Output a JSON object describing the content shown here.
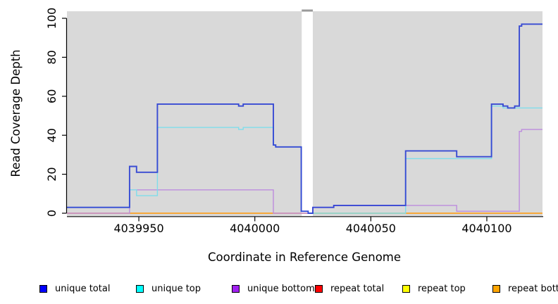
{
  "chart_data": {
    "type": "line",
    "subtype": "step-after-coverage-plot",
    "title": "",
    "xlabel": "Coordinate in Reference Genome",
    "ylabel": "Read Coverage Depth",
    "xlim": [
      4039919,
      4040124
    ],
    "ylim": [
      0,
      100
    ],
    "xticks": [
      "4039950",
      "4040000",
      "4040050",
      "4040100"
    ],
    "yticks": [
      "0",
      "20",
      "40",
      "60",
      "80",
      "100"
    ],
    "grid": "off",
    "legend_position": "bottom",
    "panel_background": "#D9D9D9",
    "gap_region": {
      "x_start": 4040020.2,
      "x_end": 4040025,
      "fill": "#FFFFFF"
    },
    "series": [
      {
        "name": "unique total",
        "legend_color": "#0000FF",
        "line_color": "#2B3FD2",
        "line_width": 1.9,
        "opacity": 0.92,
        "points": [
          [
            4039919,
            3
          ],
          [
            4039946,
            24
          ],
          [
            4039949,
            21
          ],
          [
            4039958,
            56
          ],
          [
            4039993,
            55
          ],
          [
            4039995,
            56
          ],
          [
            4040008,
            35
          ],
          [
            4040009,
            34
          ],
          [
            4040020,
            1
          ],
          [
            4040023,
            0
          ],
          [
            4040025,
            3
          ],
          [
            4040034,
            4
          ],
          [
            4040065,
            32
          ],
          [
            4040087,
            29
          ],
          [
            4040102,
            56
          ],
          [
            4040107,
            55
          ],
          [
            4040109,
            54
          ],
          [
            4040112,
            55
          ],
          [
            4040114,
            96
          ],
          [
            4040115,
            97
          ],
          [
            4040124,
            97
          ]
        ]
      },
      {
        "name": "unique top",
        "legend_color": "#00FFFF",
        "line_color": "#7FDDEB",
        "line_width": 1.4,
        "opacity": 1,
        "points": [
          [
            4039919,
            3
          ],
          [
            4039946,
            12
          ],
          [
            4039949,
            9
          ],
          [
            4039958,
            44
          ],
          [
            4039993,
            43
          ],
          [
            4039995,
            44
          ],
          [
            4040008,
            35
          ],
          [
            4040009,
            34
          ],
          [
            4040020,
            1
          ],
          [
            4040023,
            0
          ],
          [
            4040065,
            28
          ],
          [
            4040102,
            55
          ],
          [
            4040107,
            54
          ],
          [
            4040124,
            54
          ]
        ]
      },
      {
        "name": "unique bottom",
        "legend_color": "#A020F0",
        "line_color": "#BD8CDE",
        "line_width": 1.4,
        "opacity": 1,
        "points": [
          [
            4039919,
            0
          ],
          [
            4039946,
            12
          ],
          [
            4040008,
            0
          ],
          [
            4040025,
            3
          ],
          [
            4040034,
            4
          ],
          [
            4040087,
            1
          ],
          [
            4040114,
            42
          ],
          [
            4040115,
            43
          ],
          [
            4040124,
            43
          ]
        ]
      },
      {
        "name": "repeat total",
        "legend_color": "#FF0000",
        "line_color": "#C7506E",
        "line_width": 1.2,
        "opacity": 1,
        "points": [
          [
            4039919,
            0
          ],
          [
            4040124,
            0
          ]
        ]
      },
      {
        "name": "repeat top",
        "legend_color": "#FFFF00",
        "line_color": "#FFFF00",
        "line_width": 1.2,
        "opacity": 1,
        "points": [
          [
            4039919,
            0
          ],
          [
            4040124,
            0
          ]
        ]
      },
      {
        "name": "repeat bottom",
        "legend_color": "#FFA500",
        "line_color": "#FF9D1E",
        "line_width": 1.5,
        "opacity": 1,
        "points": [
          [
            4039919,
            0
          ],
          [
            4040124,
            0
          ]
        ]
      }
    ]
  }
}
